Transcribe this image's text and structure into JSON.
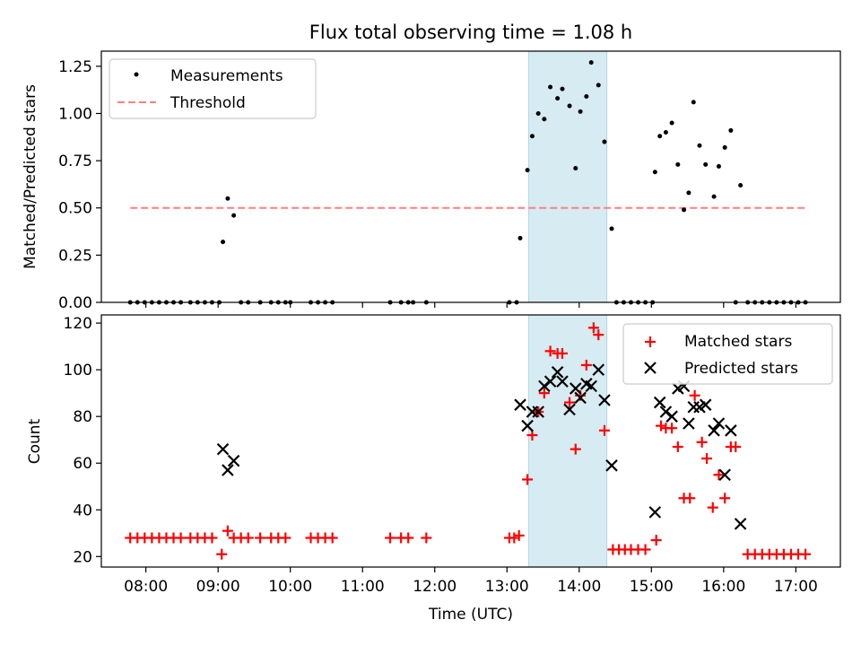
{
  "figure": {
    "title": "Flux total observing time = 1.08 h"
  },
  "colors": {
    "measurements": "#000000",
    "threshold": "#ff7f7f",
    "matched": "#ff0000",
    "predicted": "#000000",
    "highlight": "#add8e6"
  },
  "chart_data": [
    {
      "type": "scatter",
      "title": "Flux total observing time = 1.08 h",
      "xlabel": "",
      "ylabel": "Matched/Predicted stars",
      "xlim": [
        "07:23",
        "17:37"
      ],
      "ylim": [
        0,
        1.33
      ],
      "yticks": [
        "0.00",
        "0.25",
        "0.50",
        "0.75",
        "1.00",
        "1.25"
      ],
      "legend_position": "top-left",
      "highlight_span": [
        "13:18",
        "14:23"
      ],
      "series": [
        {
          "name": "Measurements",
          "marker": "dot",
          "points": [
            [
              "07:47",
              0
            ],
            [
              "07:53",
              0
            ],
            [
              "07:59",
              0
            ],
            [
              "08:05",
              0
            ],
            [
              "08:11",
              0
            ],
            [
              "08:17",
              0
            ],
            [
              "08:23",
              0
            ],
            [
              "08:29",
              0
            ],
            [
              "08:37",
              0
            ],
            [
              "08:43",
              0
            ],
            [
              "08:49",
              0
            ],
            [
              "08:55",
              0
            ],
            [
              "09:01",
              0
            ],
            [
              "09:04",
              0.32
            ],
            [
              "09:08",
              0.55
            ],
            [
              "09:13",
              0.46
            ],
            [
              "09:19",
              0
            ],
            [
              "09:25",
              0
            ],
            [
              "09:35",
              0
            ],
            [
              "09:44",
              0
            ],
            [
              "09:50",
              0
            ],
            [
              "09:56",
              0
            ],
            [
              "10:00",
              0
            ],
            [
              "10:17",
              0
            ],
            [
              "10:23",
              0
            ],
            [
              "10:29",
              0
            ],
            [
              "10:35",
              0
            ],
            [
              "11:23",
              0
            ],
            [
              "11:32",
              0
            ],
            [
              "11:38",
              0
            ],
            [
              "11:42",
              0
            ],
            [
              "11:53",
              0
            ],
            [
              "13:02",
              0
            ],
            [
              "13:08",
              0
            ],
            [
              "13:11",
              0.34
            ],
            [
              "13:17",
              0.7
            ],
            [
              "13:21",
              0.88
            ],
            [
              "13:26",
              1.0
            ],
            [
              "13:31",
              0.97
            ],
            [
              "13:36",
              1.14
            ],
            [
              "13:42",
              1.08
            ],
            [
              "13:46",
              1.13
            ],
            [
              "13:52",
              1.04
            ],
            [
              "13:57",
              0.71
            ],
            [
              "14:01",
              1.01
            ],
            [
              "14:06",
              1.09
            ],
            [
              "14:10",
              1.27
            ],
            [
              "14:16",
              1.15
            ],
            [
              "14:21",
              0.85
            ],
            [
              "14:27",
              0.39
            ],
            [
              "14:31",
              0
            ],
            [
              "14:37",
              0
            ],
            [
              "14:43",
              0
            ],
            [
              "14:49",
              0
            ],
            [
              "14:55",
              0
            ],
            [
              "15:01",
              0
            ],
            [
              "15:03",
              0.69
            ],
            [
              "15:07",
              0.88
            ],
            [
              "15:12",
              0.9
            ],
            [
              "15:17",
              0.95
            ],
            [
              "15:22",
              0.73
            ],
            [
              "15:27",
              0.49
            ],
            [
              "15:31",
              0.58
            ],
            [
              "15:35",
              1.06
            ],
            [
              "15:40",
              0.83
            ],
            [
              "15:45",
              0.73
            ],
            [
              "15:52",
              0.56
            ],
            [
              "15:56",
              0.72
            ],
            [
              "16:01",
              0.82
            ],
            [
              "16:06",
              0.91
            ],
            [
              "16:10",
              0
            ],
            [
              "16:14",
              0.62
            ],
            [
              "16:20",
              0
            ],
            [
              "16:26",
              0
            ],
            [
              "16:32",
              0
            ],
            [
              "16:38",
              0
            ],
            [
              "16:44",
              0
            ],
            [
              "16:50",
              0
            ],
            [
              "16:56",
              0
            ],
            [
              "17:02",
              0
            ],
            [
              "17:08",
              0
            ]
          ]
        },
        {
          "name": "Threshold",
          "line_style": "dashed",
          "points": [
            [
              "07:47",
              0.5
            ],
            [
              "17:08",
              0.5
            ]
          ]
        }
      ]
    },
    {
      "type": "scatter",
      "xlabel": "Time (UTC)",
      "ylabel": "Count",
      "xlim": [
        "07:23",
        "17:37"
      ],
      "ylim": [
        15.5,
        123.5
      ],
      "yticks": [
        "20",
        "40",
        "60",
        "80",
        "100",
        "120"
      ],
      "xticks": [
        "08:00",
        "09:00",
        "10:00",
        "11:00",
        "12:00",
        "13:00",
        "14:00",
        "15:00",
        "16:00",
        "17:00"
      ],
      "legend_position": "top-right",
      "highlight_span": [
        "13:18",
        "14:23"
      ],
      "series": [
        {
          "name": "Matched stars",
          "marker": "plus",
          "points": [
            [
              "07:47",
              28
            ],
            [
              "07:53",
              28
            ],
            [
              "07:59",
              28
            ],
            [
              "08:05",
              28
            ],
            [
              "08:11",
              28
            ],
            [
              "08:17",
              28
            ],
            [
              "08:23",
              28
            ],
            [
              "08:29",
              28
            ],
            [
              "08:37",
              28
            ],
            [
              "08:43",
              28
            ],
            [
              "08:49",
              28
            ],
            [
              "08:55",
              28
            ],
            [
              "09:03",
              21
            ],
            [
              "09:08",
              31
            ],
            [
              "09:13",
              28
            ],
            [
              "09:19",
              28
            ],
            [
              "09:25",
              28
            ],
            [
              "09:35",
              28
            ],
            [
              "09:44",
              28
            ],
            [
              "09:50",
              28
            ],
            [
              "09:56",
              28
            ],
            [
              "10:17",
              28
            ],
            [
              "10:23",
              28
            ],
            [
              "10:29",
              28
            ],
            [
              "10:35",
              28
            ],
            [
              "11:23",
              28
            ],
            [
              "11:32",
              28
            ],
            [
              "11:38",
              28
            ],
            [
              "11:53",
              28
            ],
            [
              "13:02",
              28
            ],
            [
              "13:06",
              28
            ],
            [
              "13:10",
              29
            ],
            [
              "13:17",
              53
            ],
            [
              "13:21",
              72
            ],
            [
              "13:26",
              82
            ],
            [
              "13:31",
              90
            ],
            [
              "13:36",
              108
            ],
            [
              "13:42",
              107
            ],
            [
              "13:46",
              107
            ],
            [
              "13:52",
              86
            ],
            [
              "13:57",
              66
            ],
            [
              "14:01",
              89
            ],
            [
              "14:06",
              102
            ],
            [
              "14:12",
              118
            ],
            [
              "14:16",
              115
            ],
            [
              "14:21",
              74
            ],
            [
              "14:28",
              23
            ],
            [
              "14:33",
              23
            ],
            [
              "14:38",
              23
            ],
            [
              "14:43",
              23
            ],
            [
              "14:49",
              23
            ],
            [
              "14:55",
              23
            ],
            [
              "15:04",
              27
            ],
            [
              "15:08",
              76
            ],
            [
              "15:12",
              75
            ],
            [
              "15:17",
              75
            ],
            [
              "15:22",
              67
            ],
            [
              "15:27",
              45
            ],
            [
              "15:32",
              45
            ],
            [
              "15:36",
              89
            ],
            [
              "15:42",
              69
            ],
            [
              "15:46",
              62
            ],
            [
              "15:51",
              41
            ],
            [
              "15:56",
              55
            ],
            [
              "16:01",
              45
            ],
            [
              "16:06",
              67
            ],
            [
              "16:10",
              67
            ],
            [
              "16:20",
              21
            ],
            [
              "16:26",
              21
            ],
            [
              "16:32",
              21
            ],
            [
              "16:38",
              21
            ],
            [
              "16:44",
              21
            ],
            [
              "16:50",
              21
            ],
            [
              "16:56",
              21
            ],
            [
              "17:02",
              21
            ],
            [
              "17:08",
              21
            ]
          ]
        },
        {
          "name": "Predicted stars",
          "marker": "x",
          "points": [
            [
              "09:04",
              66
            ],
            [
              "09:08",
              57
            ],
            [
              "09:13",
              61
            ],
            [
              "13:11",
              85
            ],
            [
              "13:17",
              76
            ],
            [
              "13:21",
              82
            ],
            [
              "13:26",
              82
            ],
            [
              "13:31",
              93
            ],
            [
              "13:36",
              95
            ],
            [
              "13:42",
              99
            ],
            [
              "13:46",
              95
            ],
            [
              "13:52",
              83
            ],
            [
              "13:57",
              92
            ],
            [
              "14:01",
              88
            ],
            [
              "14:06",
              94
            ],
            [
              "14:10",
              93
            ],
            [
              "14:16",
              100
            ],
            [
              "14:21",
              87
            ],
            [
              "14:27",
              59
            ],
            [
              "15:03",
              39
            ],
            [
              "15:07",
              86
            ],
            [
              "15:12",
              82
            ],
            [
              "15:17",
              80
            ],
            [
              "15:22",
              92
            ],
            [
              "15:27",
              93
            ],
            [
              "15:31",
              77
            ],
            [
              "15:35",
              84
            ],
            [
              "15:40",
              84
            ],
            [
              "15:45",
              85
            ],
            [
              "15:52",
              74
            ],
            [
              "15:56",
              77
            ],
            [
              "16:01",
              55
            ],
            [
              "16:06",
              74
            ],
            [
              "16:14",
              34
            ]
          ]
        }
      ]
    }
  ]
}
